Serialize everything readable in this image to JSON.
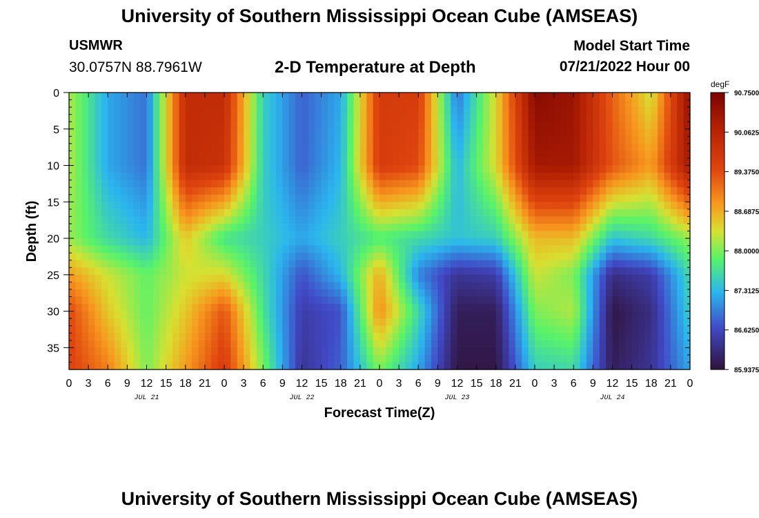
{
  "header": {
    "title": "University of Southern Mississippi Ocean Cube (AMSEAS)",
    "station": "USMWR",
    "coords": "30.0757N  88.7961W",
    "subtitle": "2-D Temperature at Depth",
    "model_start_label": "Model Start Time",
    "model_start_value": "07/21/2022 Hour 00"
  },
  "footer": {
    "title": "University of Southern Mississippi Ocean Cube (AMSEAS)"
  },
  "chart_data": {
    "type": "heatmap",
    "title": "2-D Temperature at Depth",
    "xlabel": "Forecast Time(Z)",
    "ylabel": "Depth (ft)",
    "xlim": [
      0,
      96
    ],
    "ylim": [
      0,
      38
    ],
    "x_tick_labels": [
      "0",
      "3",
      "6",
      "9",
      "12",
      "15",
      "18",
      "21",
      "0",
      "3",
      "6",
      "9",
      "12",
      "15",
      "18",
      "21",
      "0",
      "3",
      "6",
      "9",
      "12",
      "15",
      "18",
      "21",
      "0",
      "3",
      "6",
      "9",
      "12",
      "15",
      "18",
      "21",
      "0"
    ],
    "date_labels": [
      {
        "label": "JUL 21",
        "hour": 12
      },
      {
        "label": "JUL 22",
        "hour": 36
      },
      {
        "label": "JUL 23",
        "hour": 60
      },
      {
        "label": "JUL 24",
        "hour": 84
      }
    ],
    "y_ticks": [
      0,
      5,
      10,
      15,
      20,
      25,
      30,
      35
    ],
    "colorbar": {
      "unit": "degF",
      "min": 85.9375,
      "max": 90.75,
      "tick_labels": [
        "90.7500",
        "90.0625",
        "89.3750",
        "88.6875",
        "88.0000",
        "87.3125",
        "86.6250",
        "85.9375"
      ]
    },
    "depth_levels_ft": [
      0,
      10,
      20,
      25,
      30,
      38
    ],
    "time_hours": [
      0,
      6,
      12,
      18,
      24,
      30,
      36,
      42,
      48,
      54,
      60,
      66,
      72,
      78,
      84,
      90,
      96
    ],
    "values": [
      [
        88.2,
        87.2,
        86.9,
        89.9,
        89.9,
        87.5,
        86.8,
        87.2,
        89.6,
        89.6,
        86.9,
        88.4,
        90.6,
        90.4,
        89.2,
        88.3,
        90.5
      ],
      [
        88.2,
        87.2,
        86.9,
        89.9,
        89.8,
        87.5,
        86.8,
        87.3,
        89.6,
        89.4,
        87.3,
        88.4,
        90.3,
        90.3,
        89.3,
        88.8,
        90.3
      ],
      [
        88.1,
        87.6,
        87.3,
        88.5,
        87.7,
        87.5,
        87.2,
        87.5,
        87.8,
        87.6,
        87.4,
        87.5,
        88.6,
        88.6,
        87.4,
        87.6,
        88.1
      ],
      [
        88.8,
        88.3,
        87.9,
        88.3,
        88.4,
        87.6,
        86.7,
        87.3,
        88.7,
        87.0,
        86.4,
        86.5,
        88.3,
        88.0,
        86.3,
        86.5,
        87.6
      ],
      [
        89.4,
        88.5,
        87.9,
        88.5,
        89.3,
        87.7,
        86.5,
        86.7,
        88.9,
        87.6,
        86.1,
        86.1,
        88.0,
        88.2,
        86.0,
        86.3,
        87.5
      ],
      [
        89.5,
        89.0,
        88.0,
        88.8,
        89.6,
        88.0,
        86.4,
        86.8,
        88.0,
        87.2,
        86.0,
        86.0,
        87.5,
        87.6,
        86.1,
        86.4,
        87.2
      ]
    ]
  }
}
